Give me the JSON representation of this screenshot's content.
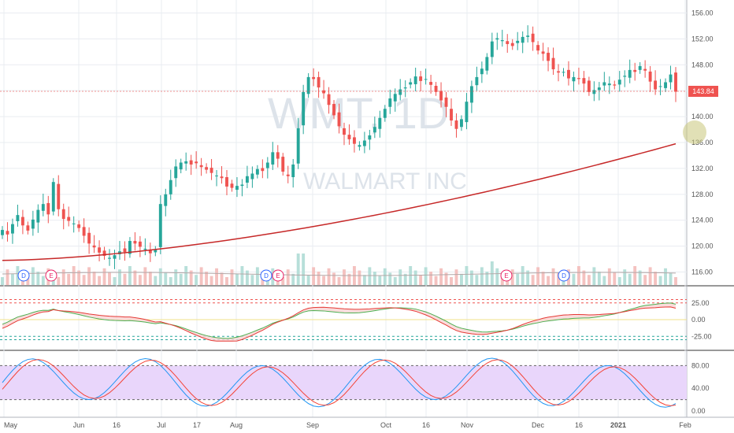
{
  "chart_data": {
    "type": "candlestick",
    "watermark": {
      "symbol": "WMT, 1D",
      "name": "WALMART INC"
    },
    "price_axis": {
      "ticks": [
        "156.00",
        "152.00",
        "148.00",
        "144.00",
        "140.00",
        "136.00",
        "132.00",
        "128.00",
        "124.00",
        "120.00",
        "116.00"
      ],
      "ylim": [
        114,
        158
      ]
    },
    "last_price": {
      "value": 143.84,
      "label": "143.84",
      "color": "#ef5350"
    },
    "x_labels": [
      "May",
      "Jun",
      "16",
      "Jul",
      "17",
      "Aug",
      "Sep",
      "Oct",
      "16",
      "Nov",
      "Dec",
      "16",
      "2021",
      "Feb"
    ],
    "series_price": [
      122.5,
      121.8,
      123.4,
      124.8,
      123.2,
      122.4,
      124.1,
      125.6,
      126.5,
      124.9,
      129.9,
      125.7,
      124.2,
      123.9,
      123.5,
      122.8,
      121.6,
      120.4,
      119.8,
      119.0,
      118.5,
      118.2,
      118.6,
      119.2,
      119.1,
      120.8,
      120.4,
      119.9,
      119.6,
      118.9,
      119.4,
      126.5,
      128.0,
      130.2,
      132.3,
      132.9,
      133.1,
      132.6,
      132.8,
      132.2,
      131.8,
      131.3,
      130.9,
      130.5,
      129.2,
      129.0,
      129.3,
      129.5,
      130.8,
      131.2,
      131.9,
      131.6,
      132.9,
      134.5,
      133.5,
      131.5,
      130.8,
      132.6,
      138.2,
      143.8,
      146.1,
      145.8,
      144.5,
      143.6,
      141.8,
      140.2,
      138.5,
      137.2,
      136.5,
      135.8,
      135.6,
      136.3,
      137.1,
      138.4,
      139.8,
      141.2,
      142.8,
      143.5,
      144.2,
      144.5,
      145.3,
      146.2,
      145.5,
      145.8,
      144.9,
      143.8,
      142.5,
      141.5,
      139.4,
      138.1,
      139.6,
      142.3,
      144.7,
      146.1,
      147.4,
      149.2,
      151.6,
      152.1,
      151.8,
      151.2,
      150.9,
      151.7,
      152.3,
      152.5,
      151.5,
      150.2,
      149.7,
      148.6,
      147.3,
      146.8,
      146.9,
      145.9,
      146.1,
      145.8,
      145.1,
      143.8,
      144.1,
      144.5,
      145.3,
      145.1,
      144.8,
      145.7,
      146.3,
      147.2,
      146.9,
      147.8,
      147.1,
      145.4,
      144.2,
      144.7,
      145.3,
      146.5,
      143.84
    ],
    "series_sma200": {
      "start": 117.8,
      "end": 135.8
    },
    "volume_events": [
      "D",
      "E",
      "D",
      "E",
      "E",
      "D"
    ],
    "panel_indicator1": {
      "ticks": [
        "25.00",
        "0.00",
        "-25.00"
      ],
      "bands": [
        25,
        -25
      ]
    },
    "panel_indicator2": {
      "ticks": [
        "80.00",
        "40.00",
        "0.00"
      ],
      "bands": [
        80,
        20
      ]
    }
  }
}
